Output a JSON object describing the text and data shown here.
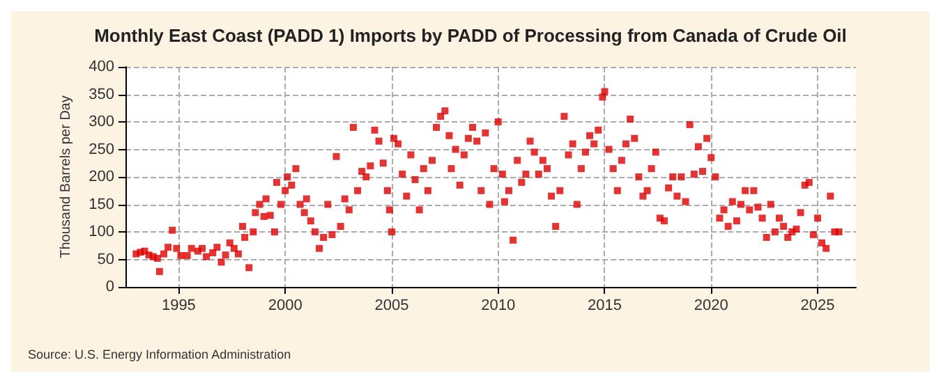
{
  "chart_data": {
    "type": "scatter",
    "title": "Monthly East Coast (PADD 1) Imports by PADD of Processing from Canada of Crude Oil",
    "ylabel": "Thousand Barrels per Day",
    "annotations": [
      "Source: U.S. Energy Information Administration"
    ],
    "xlim": [
      1992.5,
      2026.8
    ],
    "xticks": [
      1995,
      2000,
      2005,
      2010,
      2015,
      2020,
      2025
    ],
    "ylim": [
      0,
      400
    ],
    "yticks": [
      0,
      50,
      100,
      150,
      200,
      250,
      300,
      350,
      400
    ],
    "grid": true,
    "marker": "square",
    "series": [
      {
        "color": "#dd0000",
        "x": [
          1993.0,
          1993.2,
          1993.4,
          1993.6,
          1993.8,
          1994.0,
          1994.1,
          1994.3,
          1994.5,
          1994.7,
          1994.9,
          1995.1,
          1995.4,
          1995.6,
          1995.9,
          1996.1,
          1996.3,
          1996.6,
          1996.8,
          1997.0,
          1997.2,
          1997.4,
          1997.6,
          1997.8,
          1998.0,
          1998.1,
          1998.3,
          1998.5,
          1998.6,
          1998.8,
          1999.0,
          1999.1,
          1999.3,
          1999.5,
          1999.6,
          1999.8,
          2000.0,
          2000.1,
          2000.3,
          2000.5,
          2000.7,
          2000.9,
          2001.0,
          2001.2,
          2001.4,
          2001.6,
          2001.8,
          2002.0,
          2002.2,
          2002.4,
          2002.6,
          2002.8,
          2003.0,
          2003.2,
          2003.4,
          2003.6,
          2003.8,
          2004.0,
          2004.2,
          2004.4,
          2004.6,
          2004.8,
          2004.9,
          2005.0,
          2005.1,
          2005.3,
          2005.5,
          2005.7,
          2005.9,
          2006.1,
          2006.3,
          2006.5,
          2006.7,
          2006.9,
          2007.1,
          2007.3,
          2007.5,
          2007.7,
          2007.8,
          2008.0,
          2008.2,
          2008.4,
          2008.6,
          2008.8,
          2009.0,
          2009.2,
          2009.4,
          2009.6,
          2009.8,
          2010.0,
          2010.2,
          2010.3,
          2010.5,
          2010.7,
          2010.9,
          2011.1,
          2011.3,
          2011.5,
          2011.7,
          2011.9,
          2012.1,
          2012.3,
          2012.5,
          2012.7,
          2012.9,
          2013.1,
          2013.3,
          2013.5,
          2013.7,
          2013.9,
          2014.1,
          2014.3,
          2014.5,
          2014.7,
          2014.9,
          2015.0,
          2015.2,
          2015.4,
          2015.6,
          2015.8,
          2016.0,
          2016.2,
          2016.4,
          2016.6,
          2016.8,
          2017.0,
          2017.2,
          2017.4,
          2017.6,
          2017.8,
          2018.0,
          2018.2,
          2018.4,
          2018.6,
          2018.8,
          2019.0,
          2019.2,
          2019.4,
          2019.6,
          2019.8,
          2020.0,
          2020.2,
          2020.4,
          2020.6,
          2020.8,
          2021.0,
          2021.2,
          2021.4,
          2021.6,
          2021.8,
          2022.0,
          2022.2,
          2022.4,
          2022.6,
          2022.8,
          2023.0,
          2023.2,
          2023.4,
          2023.6,
          2023.8,
          2024.0,
          2024.2,
          2024.4,
          2024.6,
          2024.8,
          2025.0,
          2025.2,
          2025.4,
          2025.6,
          2025.8,
          2026.0
        ],
        "values": [
          60,
          63,
          65,
          58,
          55,
          52,
          28,
          60,
          72,
          103,
          70,
          57,
          57,
          70,
          65,
          70,
          55,
          62,
          72,
          45,
          58,
          80,
          70,
          60,
          110,
          90,
          35,
          100,
          135,
          150,
          128,
          160,
          130,
          100,
          190,
          150,
          175,
          200,
          185,
          215,
          150,
          135,
          160,
          120,
          100,
          70,
          90,
          150,
          95,
          237,
          110,
          160,
          140,
          290,
          175,
          210,
          200,
          220,
          285,
          265,
          225,
          175,
          140,
          100,
          270,
          260,
          205,
          165,
          240,
          195,
          140,
          215,
          175,
          230,
          290,
          310,
          320,
          275,
          215,
          250,
          185,
          240,
          270,
          290,
          265,
          175,
          280,
          150,
          215,
          300,
          205,
          155,
          175,
          85,
          230,
          190,
          205,
          265,
          245,
          205,
          230,
          215,
          165,
          110,
          175,
          310,
          240,
          260,
          150,
          215,
          245,
          275,
          260,
          285,
          345,
          355,
          250,
          215,
          175,
          230,
          260,
          305,
          270,
          200,
          165,
          175,
          215,
          245,
          125,
          120,
          180,
          200,
          165,
          200,
          155,
          295,
          205,
          255,
          210,
          270,
          235,
          200,
          125,
          140,
          110,
          155,
          120,
          150,
          175,
          140,
          175,
          145,
          125,
          90,
          150,
          100,
          125,
          110,
          90,
          100,
          105,
          135,
          185,
          190,
          95,
          125,
          80,
          70,
          165,
          100,
          100
        ]
      }
    ]
  }
}
